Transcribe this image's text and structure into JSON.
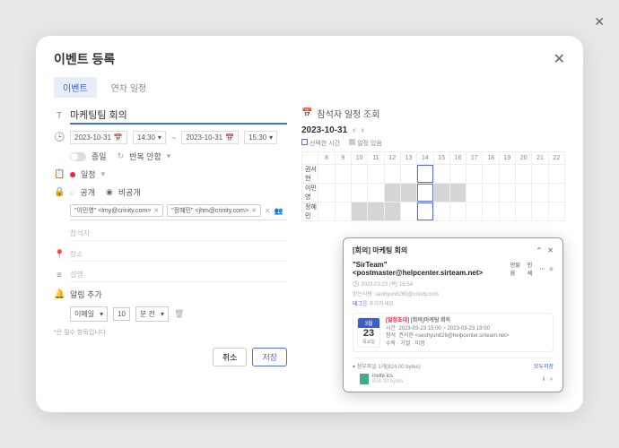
{
  "modal": {
    "title": "이벤트 등록",
    "tabs": {
      "event": "이벤트",
      "annual": "연차 일정"
    }
  },
  "form": {
    "title": "마케팅팀 회의",
    "date_start": "2023-10-31",
    "time_start": "14:30",
    "date_end": "2023-10-31",
    "time_end": "15:30",
    "allday_label": "종일",
    "repeat_label": "반복 안함",
    "calendar_label": "일정",
    "visibility_public": "공개",
    "visibility_private": "비공개",
    "chip1": "\"이민영\" <lmy@crinity.com>",
    "chip2": "\"정혜민\" <jhm@crinity.com>",
    "attendee_placeholder": "참석자",
    "location_placeholder": "장소",
    "desc_placeholder": "설명",
    "alarm_label": "알림 추가",
    "alarm_method": "이메일",
    "alarm_value": "10",
    "alarm_unit": "분 전",
    "footnote": "*은 필수 항목입니다",
    "btn_cancel": "취소",
    "btn_save": "저장"
  },
  "schedule": {
    "panel_title": "참석자 일정 조회",
    "date": "2023-10-31",
    "legend_selected": "선택한 시간",
    "legend_busy": "일정 있음",
    "hours": [
      "8",
      "9",
      "10",
      "11",
      "12",
      "13",
      "14",
      "15",
      "16",
      "17",
      "18",
      "19",
      "20",
      "21",
      "22"
    ],
    "rows": [
      {
        "name": "권서현",
        "busy": []
      },
      {
        "name": "이민영",
        "busy": [
          12,
          13,
          15,
          16
        ]
      },
      {
        "name": "정혜민",
        "busy": [
          10,
          11,
          12
        ]
      }
    ],
    "selected_hour": 14
  },
  "email": {
    "subject": "[회의] 마케팅 회의",
    "from": "\"SirTeam\" <postmaster@helpcenter.sirteam.net>",
    "actions": {
      "unread": "안읽음",
      "print": "인쇄"
    },
    "date": "2023.03.23 (목) 16:54",
    "recipient_label": "받는사람:",
    "recipient": "seohyun8260@crinity.com",
    "tag_label": "태그",
    "tag_rest": "를 추가하세요",
    "cal": {
      "month": "3월",
      "day": "23",
      "weekday": "목요일",
      "badge": "[일정초대]",
      "title": "[회의]마케팅 회의",
      "time_label": "시간",
      "time": "2023-03-23 15:00 ~ 2023-03-23 19:00",
      "organizer_label": "참석",
      "organizer": "권서현 <seohyun826@helpcenter.sirteam.net>",
      "status": "수락 · 거절 · 미정"
    },
    "attach_label": "첨부파일 1개(824.00 bytes)",
    "attach_save": "모두저장",
    "file_name": "invite.ics",
    "file_size": "824.00 bytes"
  }
}
